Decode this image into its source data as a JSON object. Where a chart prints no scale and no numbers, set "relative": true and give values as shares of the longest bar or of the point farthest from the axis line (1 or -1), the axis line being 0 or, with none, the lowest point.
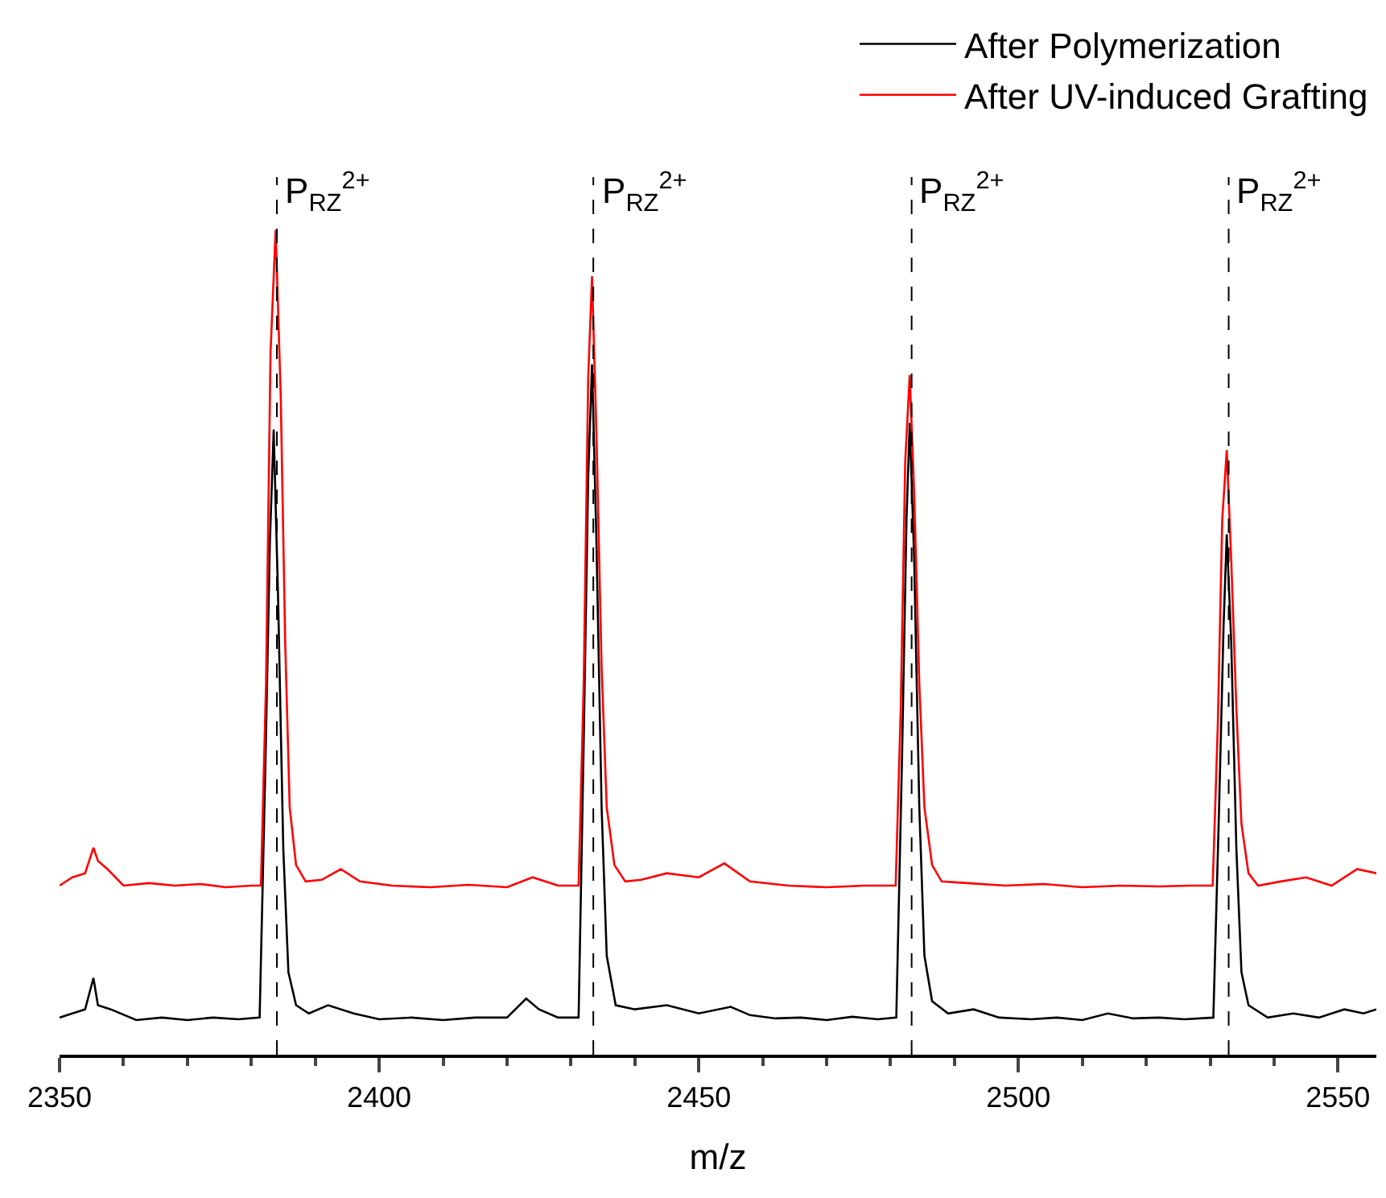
{
  "chart_data": {
    "type": "line",
    "relative": true,
    "xlabel": "m/z",
    "xlim": [
      2350,
      2556
    ],
    "xticks": [
      2350,
      {
        "value": 2360,
        "label": null
      },
      {
        "value": 2370,
        "label": null
      },
      {
        "value": 2380,
        "label": null
      },
      {
        "value": 2390,
        "label": null
      },
      2400,
      {
        "value": 2410,
        "label": null
      },
      {
        "value": 2420,
        "label": null
      },
      {
        "value": 2430,
        "label": null
      },
      {
        "value": 2440,
        "label": null
      },
      2450,
      {
        "value": 2460,
        "label": null
      },
      {
        "value": 2470,
        "label": null
      },
      {
        "value": 2480,
        "label": null
      },
      {
        "value": 2490,
        "label": null
      },
      2500,
      {
        "value": 2510,
        "label": null
      },
      {
        "value": 2520,
        "label": null
      },
      {
        "value": 2530,
        "label": null
      },
      {
        "value": 2540,
        "label": null
      },
      2550
    ],
    "legend": "top right",
    "marker": "none",
    "line_style": "solid",
    "tick_labels": "x",
    "series": [
      {
        "name": "After Polymerization",
        "color": "#000000",
        "x": [
          2350,
          2352,
          2354,
          2355.3,
          2356,
          2358,
          2362,
          2366,
          2370,
          2374,
          2378,
          2381.3,
          2382.2,
          2382.9,
          2383.5,
          2384.2,
          2385,
          2385.8,
          2387,
          2389,
          2392,
          2396,
          2400,
          2405,
          2410,
          2415,
          2420,
          2423,
          2425,
          2428,
          2431.2,
          2432,
          2432.7,
          2433.3,
          2434,
          2434.8,
          2435.6,
          2437,
          2440,
          2445,
          2450,
          2455,
          2458,
          2462,
          2466,
          2470,
          2474,
          2478,
          2480.9,
          2481.8,
          2482.5,
          2483.0,
          2483.7,
          2484.5,
          2485.3,
          2486.5,
          2489,
          2493,
          2497,
          2502,
          2506,
          2510,
          2514,
          2518,
          2522,
          2526,
          2530.5,
          2531.4,
          2532.1,
          2532.6,
          2533.3,
          2534.1,
          2534.9,
          2536,
          2539,
          2543,
          2547,
          2551,
          2554,
          2556
        ],
        "values": [
          0.045,
          0.05,
          0.055,
          0.093,
          0.06,
          0.055,
          0.042,
          0.045,
          0.042,
          0.045,
          0.043,
          0.045,
          0.35,
          0.62,
          0.758,
          0.55,
          0.25,
          0.1,
          0.06,
          0.05,
          0.06,
          0.05,
          0.043,
          0.045,
          0.042,
          0.045,
          0.045,
          0.068,
          0.055,
          0.045,
          0.045,
          0.38,
          0.7,
          0.837,
          0.62,
          0.3,
          0.12,
          0.06,
          0.055,
          0.06,
          0.05,
          0.058,
          0.048,
          0.044,
          0.045,
          0.042,
          0.046,
          0.043,
          0.045,
          0.36,
          0.65,
          0.766,
          0.6,
          0.3,
          0.12,
          0.065,
          0.05,
          0.055,
          0.045,
          0.043,
          0.045,
          0.042,
          0.05,
          0.044,
          0.045,
          0.043,
          0.045,
          0.3,
          0.52,
          0.631,
          0.5,
          0.25,
          0.1,
          0.06,
          0.045,
          0.05,
          0.045,
          0.055,
          0.05,
          0.055
        ]
      },
      {
        "name": "After UV-induced Grafting",
        "color": "#ff0000",
        "x": [
          2350,
          2352,
          2354,
          2355.3,
          2356,
          2357.5,
          2360,
          2364,
          2368,
          2372,
          2376,
          2380,
          2381.5,
          2382.3,
          2383.0,
          2383.8,
          2384.6,
          2385.3,
          2386,
          2387,
          2388.5,
          2391,
          2394,
          2397,
          2402,
          2408,
          2414,
          2420,
          2424,
          2428,
          2431.2,
          2432,
          2432.7,
          2433.3,
          2434,
          2434.8,
          2435.6,
          2436.8,
          2438.5,
          2441,
          2445,
          2450,
          2454,
          2458,
          2464,
          2470,
          2476,
          2480.8,
          2481.6,
          2482.3,
          2483.0,
          2483.7,
          2484.5,
          2485.3,
          2486.5,
          2488,
          2492,
          2498,
          2504,
          2510,
          2516,
          2522,
          2527,
          2530.4,
          2531.2,
          2531.9,
          2532.6,
          2533.3,
          2534.1,
          2534.9,
          2536,
          2537.5,
          2541,
          2545,
          2549,
          2553,
          2556
        ],
        "values": [
          0.205,
          0.215,
          0.22,
          0.251,
          0.235,
          0.225,
          0.205,
          0.208,
          0.205,
          0.207,
          0.203,
          0.205,
          0.205,
          0.45,
          0.85,
          1.0,
          0.8,
          0.5,
          0.3,
          0.23,
          0.21,
          0.212,
          0.225,
          0.21,
          0.205,
          0.203,
          0.206,
          0.203,
          0.215,
          0.205,
          0.205,
          0.45,
          0.82,
          0.944,
          0.75,
          0.47,
          0.3,
          0.23,
          0.21,
          0.212,
          0.22,
          0.215,
          0.232,
          0.21,
          0.205,
          0.203,
          0.205,
          0.205,
          0.42,
          0.72,
          0.824,
          0.68,
          0.45,
          0.3,
          0.23,
          0.21,
          0.208,
          0.205,
          0.207,
          0.203,
          0.205,
          0.204,
          0.205,
          0.205,
          0.4,
          0.65,
          0.733,
          0.6,
          0.42,
          0.28,
          0.22,
          0.205,
          0.21,
          0.215,
          0.205,
          0.225,
          0.22
        ]
      }
    ],
    "ref_lines": [
      {
        "axis": "x",
        "value": 2384,
        "label": "P$_{RZ}$$^{2+}$",
        "color": "#000000",
        "line_style": "dashed"
      },
      {
        "axis": "x",
        "value": 2433.5,
        "label": "P$_{RZ}$$^{2+}$",
        "color": "#000000",
        "line_style": "dashed"
      },
      {
        "axis": "x",
        "value": 2483.3,
        "label": "P$_{RZ}$$^{2+}$",
        "color": "#000000",
        "line_style": "dashed"
      },
      {
        "axis": "x",
        "value": 2532.9,
        "label": "P$_{RZ}$$^{2+}$",
        "color": "#000000",
        "line_style": "dashed"
      }
    ]
  }
}
